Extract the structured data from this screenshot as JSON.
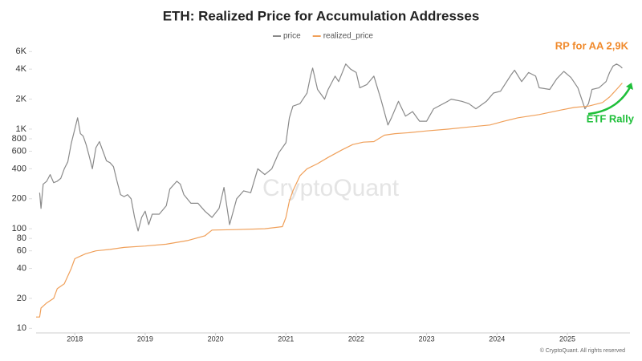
{
  "chart_data": {
    "type": "line",
    "title": "ETH: Realized Price for Accumulation Addresses",
    "log_scale": true,
    "xlim": [
      2017.45,
      2025.89
    ],
    "xticks": [
      2018,
      2019,
      2020,
      2021,
      2022,
      2023,
      2024,
      2025
    ],
    "ylim": [
      9,
      6500
    ],
    "yticks": [
      10,
      20,
      40,
      60,
      80,
      100,
      200,
      400,
      600,
      800,
      {
        "value": 1000,
        "label": "1K"
      },
      {
        "value": 2000,
        "label": "2K"
      },
      {
        "value": 4000,
        "label": "4K"
      },
      {
        "value": 6000,
        "label": "6K"
      }
    ],
    "legend": "top",
    "series": [
      {
        "name": "price",
        "color": "#8a8a8a",
        "x": [
          2017.5,
          2017.52,
          2017.55,
          2017.6,
          2017.65,
          2017.7,
          2017.75,
          2017.8,
          2017.85,
          2017.9,
          2017.95,
          2018.0,
          2018.04,
          2018.08,
          2018.12,
          2018.16,
          2018.2,
          2018.25,
          2018.3,
          2018.35,
          2018.4,
          2018.45,
          2018.5,
          2018.55,
          2018.6,
          2018.65,
          2018.7,
          2018.75,
          2018.8,
          2018.85,
          2018.9,
          2018.95,
          2019.0,
          2019.05,
          2019.1,
          2019.2,
          2019.3,
          2019.35,
          2019.45,
          2019.5,
          2019.55,
          2019.65,
          2019.75,
          2019.85,
          2019.95,
          2020.05,
          2020.12,
          2020.2,
          2020.3,
          2020.4,
          2020.5,
          2020.6,
          2020.7,
          2020.8,
          2020.9,
          2021.0,
          2021.05,
          2021.1,
          2021.2,
          2021.3,
          2021.35,
          2021.38,
          2021.45,
          2021.55,
          2021.6,
          2021.7,
          2021.75,
          2021.85,
          2021.92,
          2022.0,
          2022.05,
          2022.15,
          2022.25,
          2022.35,
          2022.45,
          2022.5,
          2022.6,
          2022.7,
          2022.8,
          2022.9,
          2023.0,
          2023.1,
          2023.3,
          2023.35,
          2023.5,
          2023.6,
          2023.7,
          2023.85,
          2023.95,
          2024.05,
          2024.2,
          2024.25,
          2024.35,
          2024.45,
          2024.55,
          2024.6,
          2024.75,
          2024.85,
          2024.95,
          2025.05,
          2025.15,
          2025.25,
          2025.3,
          2025.35,
          2025.45,
          2025.55,
          2025.6,
          2025.65,
          2025.7,
          2025.75,
          2025.78
        ],
        "values": [
          230,
          160,
          280,
          300,
          350,
          290,
          300,
          320,
          400,
          470,
          720,
          1000,
          1300,
          900,
          850,
          700,
          550,
          400,
          650,
          750,
          600,
          480,
          460,
          420,
          300,
          220,
          210,
          220,
          200,
          130,
          95,
          130,
          150,
          110,
          140,
          140,
          170,
          250,
          300,
          280,
          220,
          180,
          180,
          150,
          130,
          160,
          260,
          110,
          200,
          240,
          230,
          400,
          350,
          400,
          580,
          730,
          1300,
          1700,
          1800,
          2300,
          3400,
          4100,
          2500,
          2000,
          2500,
          3400,
          3000,
          4500,
          4000,
          3700,
          2600,
          2800,
          3400,
          2000,
          1100,
          1300,
          1900,
          1350,
          1500,
          1200,
          1200,
          1600,
          1900,
          2000,
          1900,
          1800,
          1600,
          1900,
          2300,
          2400,
          3500,
          3900,
          3000,
          3700,
          3400,
          2600,
          2500,
          3200,
          3800,
          3300,
          2600,
          1600,
          1800,
          2500,
          2600,
          3000,
          3700,
          4300,
          4500,
          4300,
          4100
        ]
      },
      {
        "name": "realized_price",
        "color": "#f0a05a",
        "x": [
          2017.45,
          2017.5,
          2017.52,
          2017.6,
          2017.7,
          2017.75,
          2017.85,
          2017.95,
          2018.0,
          2018.05,
          2018.15,
          2018.3,
          2018.5,
          2018.7,
          2019.0,
          2019.3,
          2019.6,
          2019.85,
          2019.95,
          2020.3,
          2020.7,
          2020.95,
          2021.0,
          2021.05,
          2021.1,
          2021.2,
          2021.3,
          2021.45,
          2021.6,
          2021.8,
          2021.95,
          2022.1,
          2022.25,
          2022.4,
          2022.55,
          2022.75,
          2023.0,
          2023.3,
          2023.6,
          2023.9,
          2024.1,
          2024.3,
          2024.6,
          2024.9,
          2025.1,
          2025.3,
          2025.5,
          2025.6,
          2025.7,
          2025.78
        ],
        "values": [
          13,
          13,
          16,
          18,
          20,
          25,
          28,
          40,
          50,
          52,
          56,
          60,
          62,
          65,
          67,
          70,
          76,
          85,
          97,
          98,
          100,
          105,
          130,
          190,
          240,
          340,
          400,
          450,
          520,
          620,
          700,
          740,
          750,
          870,
          900,
          920,
          960,
          1000,
          1050,
          1100,
          1200,
          1300,
          1400,
          1550,
          1650,
          1700,
          1850,
          2100,
          2500,
          2900
        ]
      }
    ],
    "annotations": [
      {
        "text": "RP for AA 2,9K",
        "color": "#f08a2c"
      },
      {
        "text": "ETF Rally",
        "color": "#1fbf3a"
      }
    ],
    "watermark": "CryptoQuant",
    "footer": "© CryptoQuant. All rights reserved"
  }
}
